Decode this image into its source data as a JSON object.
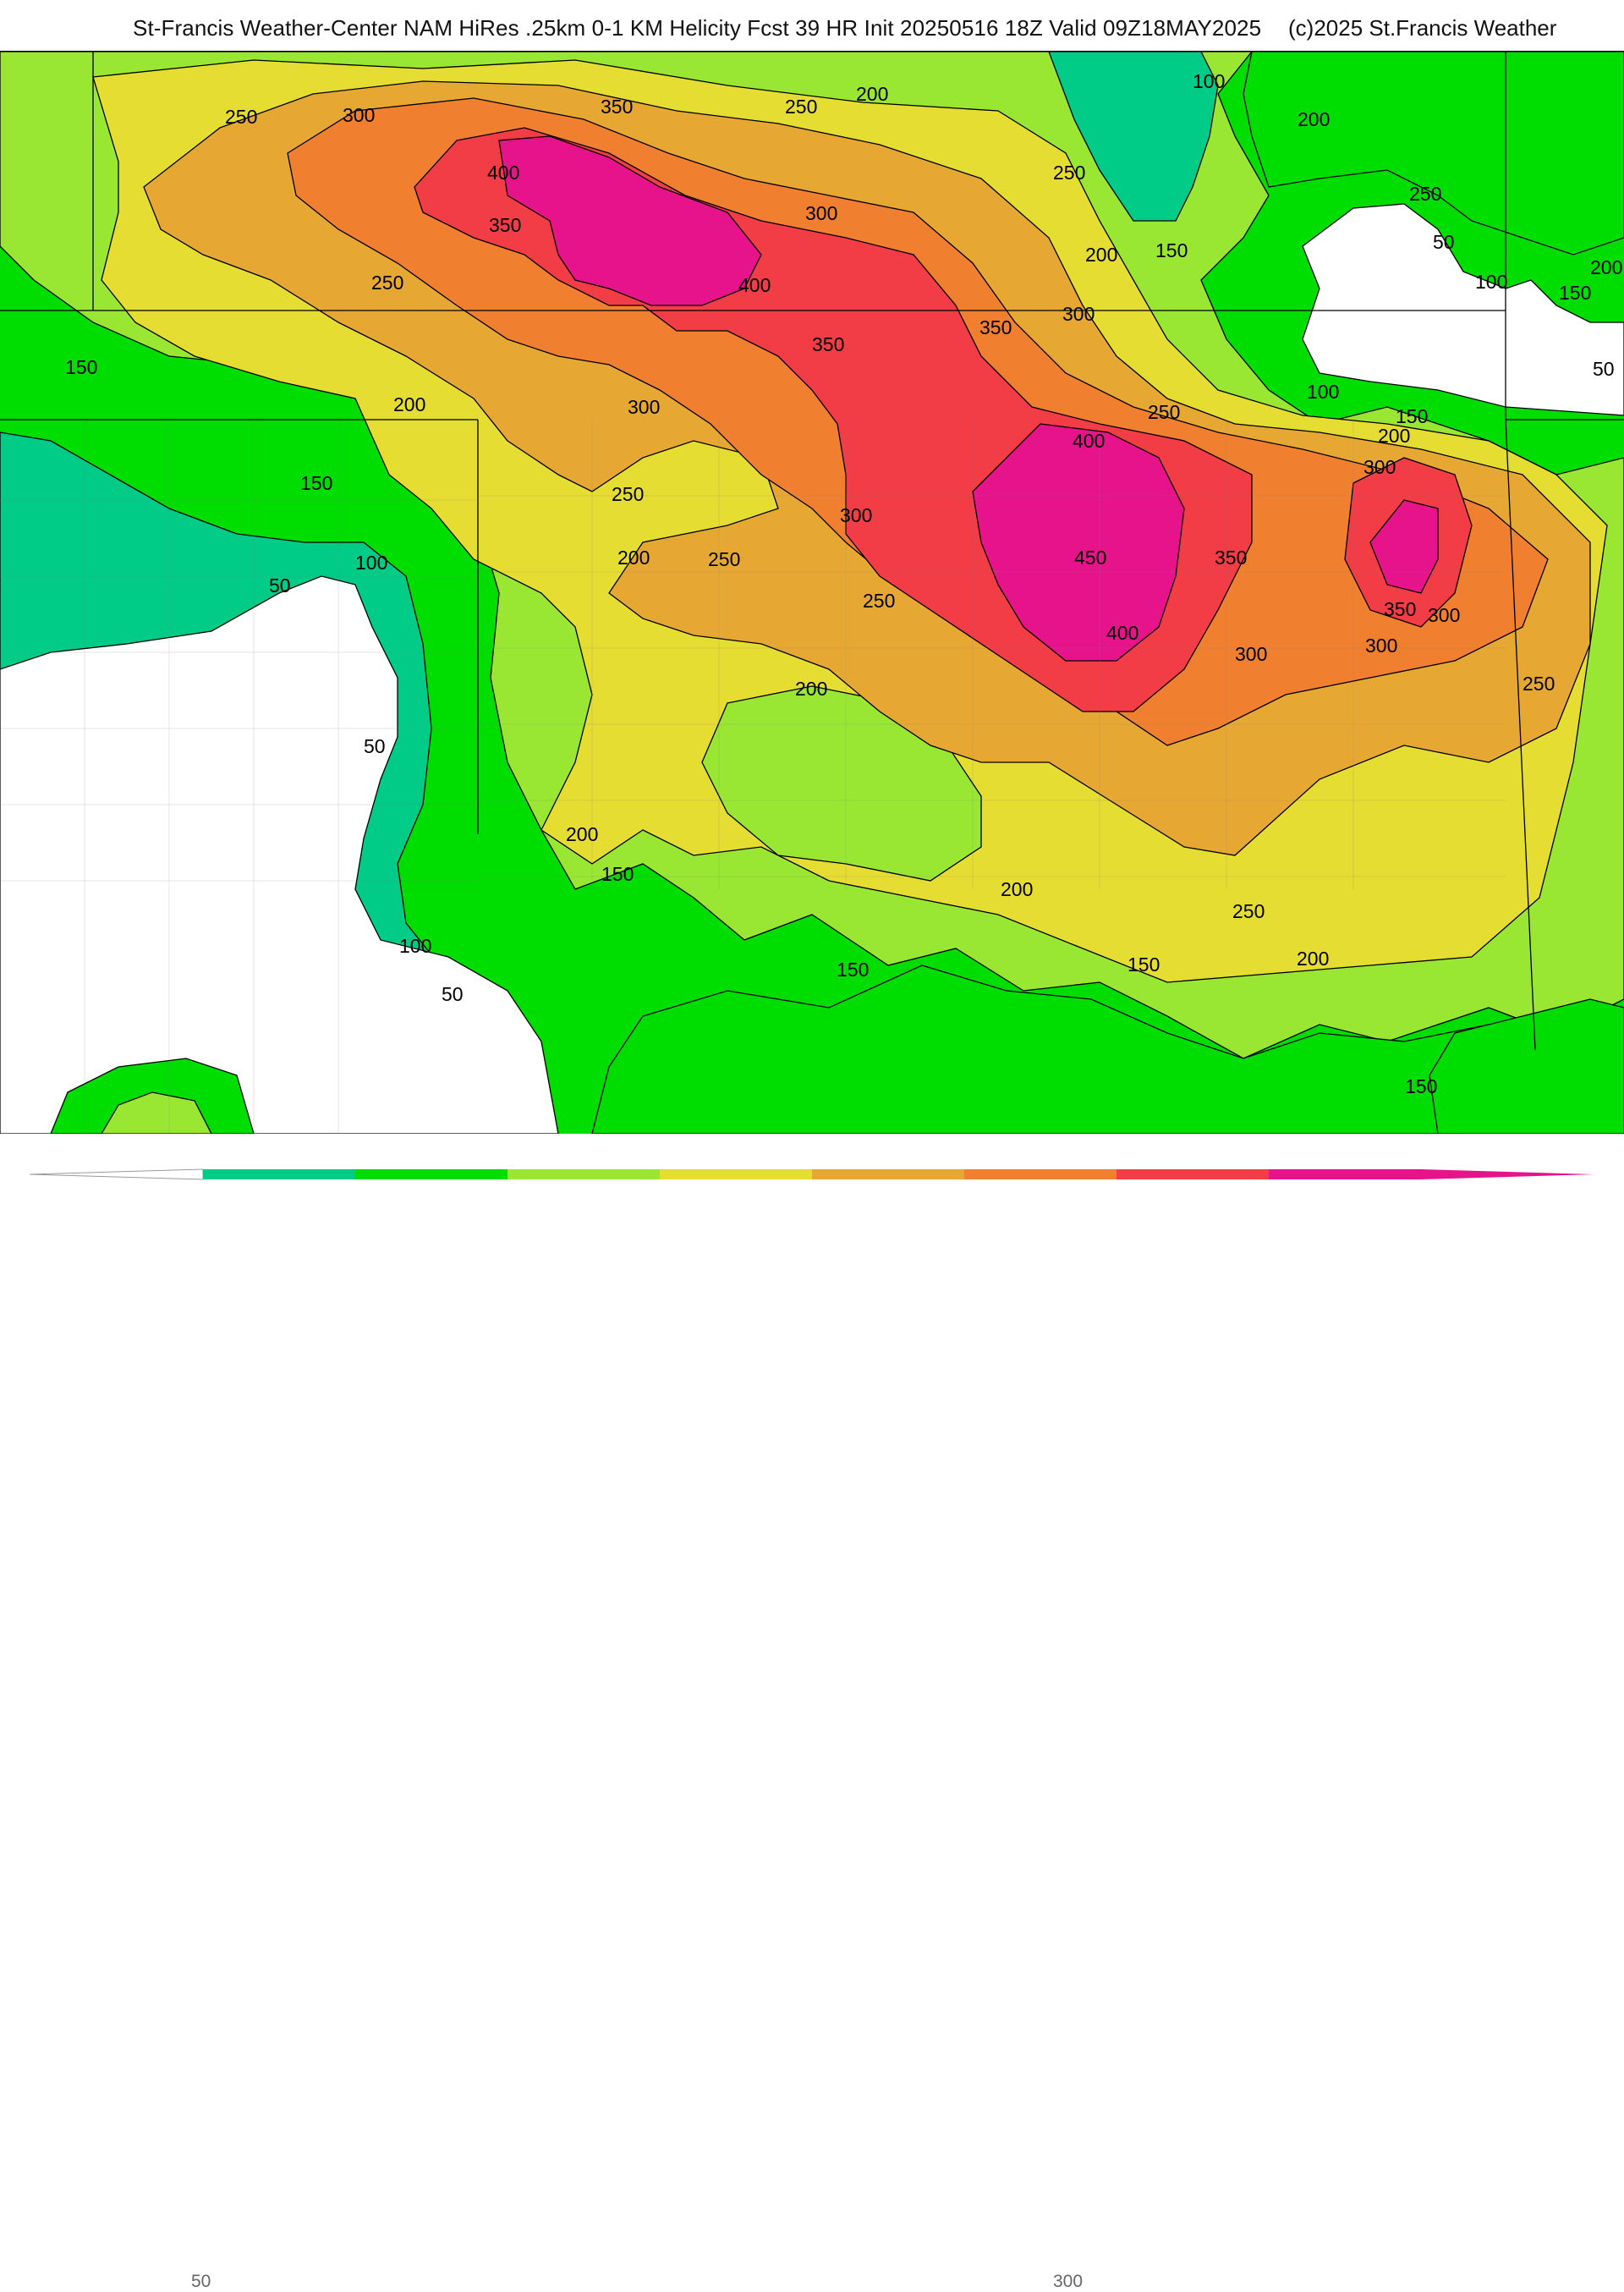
{
  "header": {
    "title": "St-Francis Weather-Center NAM HiRes .25km 0-1 KM Helicity Fcst 39 HR Init 20250516 18Z  Valid 09Z18MAY2025",
    "copyright": "(c)2025 St.Francis Weather"
  },
  "map": {
    "variable": "0-1 KM Helicity",
    "contour_labels": [
      {
        "text": "250"
      },
      {
        "text": "300"
      },
      {
        "text": "350"
      },
      {
        "text": "250"
      },
      {
        "text": "200"
      },
      {
        "text": "100"
      },
      {
        "text": "200"
      },
      {
        "text": "400"
      },
      {
        "text": "350"
      },
      {
        "text": "300"
      },
      {
        "text": "250"
      },
      {
        "text": "250"
      },
      {
        "text": "200"
      },
      {
        "text": "150"
      },
      {
        "text": "50"
      },
      {
        "text": "100"
      },
      {
        "text": "150"
      },
      {
        "text": "200"
      },
      {
        "text": "250"
      },
      {
        "text": "400"
      },
      {
        "text": "300"
      },
      {
        "text": "150"
      },
      {
        "text": "350"
      },
      {
        "text": "350"
      },
      {
        "text": "50"
      },
      {
        "text": "200"
      },
      {
        "text": "300"
      },
      {
        "text": "100"
      },
      {
        "text": "250"
      },
      {
        "text": "150"
      },
      {
        "text": "200"
      },
      {
        "text": "150"
      },
      {
        "text": "400"
      },
      {
        "text": "300"
      },
      {
        "text": "250"
      },
      {
        "text": "300"
      },
      {
        "text": "450"
      },
      {
        "text": "350"
      },
      {
        "text": "100"
      },
      {
        "text": "200"
      },
      {
        "text": "250"
      },
      {
        "text": "50"
      },
      {
        "text": "250"
      },
      {
        "text": "350"
      },
      {
        "text": "300"
      },
      {
        "text": "300"
      },
      {
        "text": "400"
      },
      {
        "text": "300"
      },
      {
        "text": "200"
      },
      {
        "text": "250"
      },
      {
        "text": "50"
      },
      {
        "text": "200"
      },
      {
        "text": "150"
      },
      {
        "text": "200"
      },
      {
        "text": "250"
      },
      {
        "text": "100"
      },
      {
        "text": "150"
      },
      {
        "text": "150"
      },
      {
        "text": "200"
      },
      {
        "text": "50"
      },
      {
        "text": "150"
      }
    ]
  },
  "legend": {
    "tick_labels": [
      "50",
      "300"
    ],
    "colors": [
      "#00cc88",
      "#00dd00",
      "#99e633",
      "#e6dd33",
      "#e6a833",
      "#f08030",
      "#f23c46",
      "#e6138a"
    ]
  }
}
